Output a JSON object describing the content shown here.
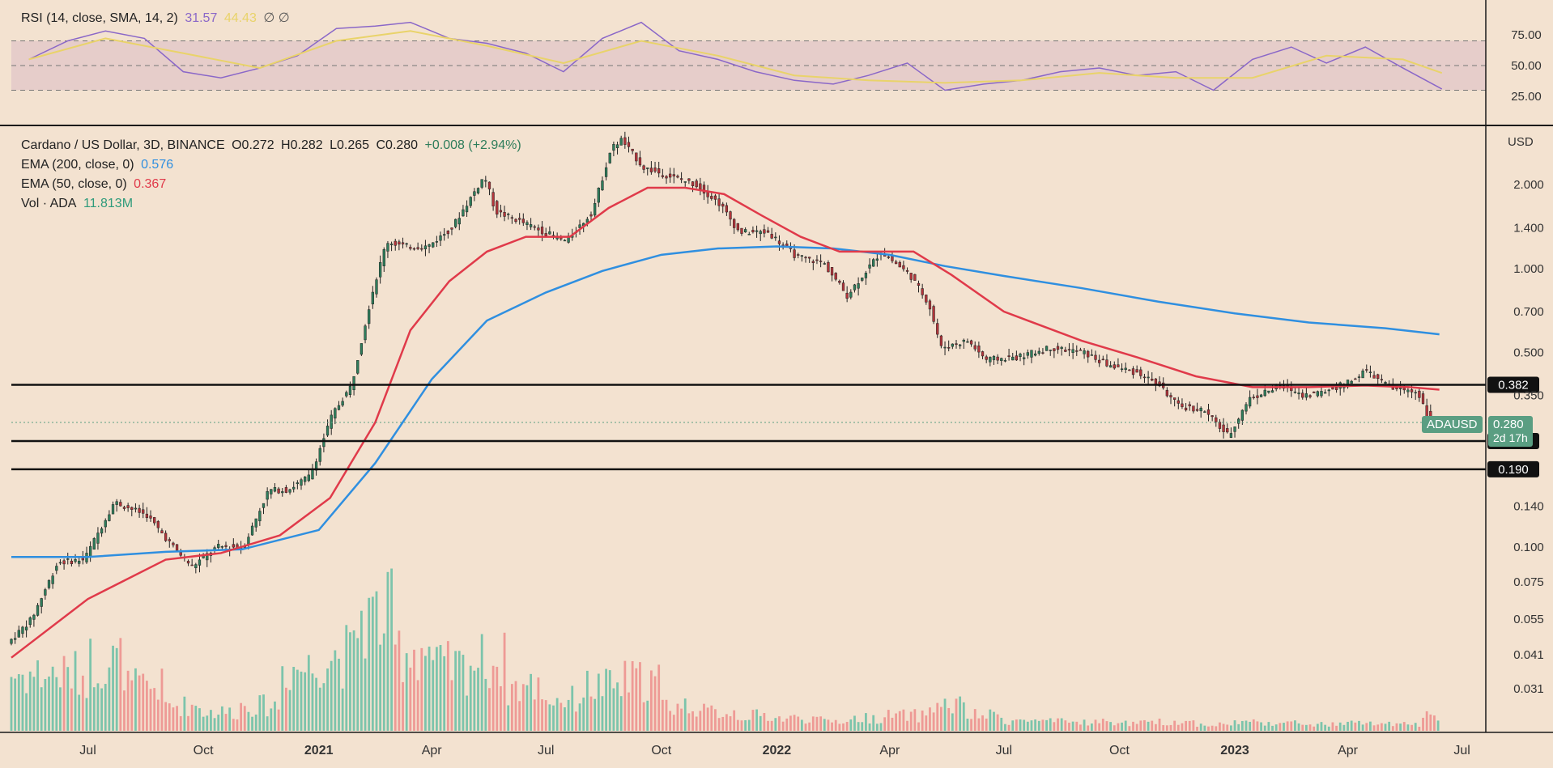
{
  "rsi_legend": {
    "name": "RSI (14, close, SMA, 14, 2)",
    "rsi_value": "31.57",
    "sma_value": "44.43",
    "extra": "∅ ∅"
  },
  "main_legend": {
    "symbol": "Cardano / US Dollar, 3D, BINANCE",
    "open": "O0.272",
    "high": "H0.282",
    "low": "L0.265",
    "close": "C0.280",
    "change": "+0.008 (+2.94%)",
    "ema200_label": "EMA (200, close, 0)",
    "ema200_value": "0.576",
    "ema50_label": "EMA (50, close, 0)",
    "ema50_value": "0.367",
    "vol_label": "Vol · ADA",
    "vol_value": "11.813M"
  },
  "price_tag": {
    "symbol": "ADAUSD",
    "price": "0.280",
    "countdown": "2d 17h"
  },
  "currency": "USD",
  "colors": {
    "background": "#f3e2d0",
    "up": "#2e7d5b",
    "down": "#b2343a",
    "ema200": "#2f8fe0",
    "ema50": "#e03a4a",
    "rsi": "#8a67c8",
    "rsi_sma": "#e9d36a",
    "vol_up": "#7cc4ab",
    "vol_down": "#ee9a95",
    "rsi_band": "#e2c8c8"
  },
  "chart_data": [
    {
      "type": "line",
      "name": "RSI",
      "yaxis_ticks": [
        "75.00",
        "50.00",
        "25.00"
      ],
      "ylim": [
        10,
        90
      ],
      "band": [
        30,
        70
      ],
      "levels": [
        70,
        50,
        30
      ],
      "series": [
        {
          "name": "RSI",
          "x": [
            "2020-05",
            "2020-06",
            "2020-07",
            "2020-08",
            "2020-09",
            "2020-10",
            "2020-11",
            "2020-12",
            "2021-01",
            "2021-02",
            "2021-03",
            "2021-04",
            "2021-05",
            "2021-06",
            "2021-07",
            "2021-08",
            "2021-09",
            "2021-10",
            "2021-11",
            "2021-12",
            "2022-01",
            "2022-02",
            "2022-03",
            "2022-04",
            "2022-05",
            "2022-06",
            "2022-07",
            "2022-08",
            "2022-09",
            "2022-10",
            "2022-11",
            "2022-12",
            "2023-01",
            "2023-02",
            "2023-03",
            "2023-04",
            "2023-05",
            "2023-06"
          ],
          "values": [
            55,
            70,
            78,
            72,
            45,
            40,
            48,
            58,
            80,
            82,
            85,
            72,
            68,
            60,
            45,
            72,
            85,
            62,
            55,
            45,
            38,
            35,
            42,
            52,
            30,
            35,
            38,
            45,
            48,
            42,
            45,
            30,
            55,
            65,
            52,
            65,
            48,
            31
          ]
        },
        {
          "name": "SMA",
          "x": [
            "2020-05",
            "2020-07",
            "2020-09",
            "2020-11",
            "2021-01",
            "2021-03",
            "2021-05",
            "2021-07",
            "2021-09",
            "2021-11",
            "2022-01",
            "2022-03",
            "2022-05",
            "2022-07",
            "2022-09",
            "2022-11",
            "2023-01",
            "2023-03",
            "2023-05",
            "2023-06"
          ],
          "values": [
            55,
            72,
            60,
            48,
            70,
            78,
            66,
            52,
            70,
            58,
            42,
            38,
            36,
            38,
            44,
            40,
            40,
            58,
            55,
            44
          ]
        }
      ]
    },
    {
      "type": "candlestick",
      "name": "Cardano / US Dollar, 3D, BINANCE",
      "scale": "log",
      "ylabel": "USD",
      "yaxis_ticks": [
        2.0,
        1.4,
        1.0,
        0.7,
        0.5,
        0.35,
        0.14,
        0.1,
        0.075,
        0.055,
        0.041,
        0.031
      ],
      "ylim": [
        0.022,
        3.2
      ],
      "x_ticks": [
        "Jul",
        "Oct",
        "2021",
        "Apr",
        "Jul",
        "Oct",
        "2022",
        "Apr",
        "Jul",
        "Oct",
        "2023",
        "Apr",
        "Jul"
      ],
      "x_tick_dates": [
        "2020-07-01",
        "2020-10-01",
        "2021-01-01",
        "2021-04-01",
        "2021-07-01",
        "2021-10-01",
        "2022-01-01",
        "2022-04-01",
        "2022-07-01",
        "2022-10-01",
        "2023-01-01",
        "2023-04-01",
        "2023-07-01"
      ],
      "xlim": [
        "2020-05-01",
        "2023-07-20"
      ],
      "price_path": {
        "dates": [
          "2020-05-01",
          "2020-05-20",
          "2020-06-10",
          "2020-07-01",
          "2020-07-25",
          "2020-08-20",
          "2020-09-10",
          "2020-09-25",
          "2020-10-15",
          "2020-11-05",
          "2020-11-25",
          "2020-12-10",
          "2020-12-28",
          "2021-01-15",
          "2021-01-30",
          "2021-02-15",
          "2021-02-27",
          "2021-03-15",
          "2021-04-01",
          "2021-04-20",
          "2021-05-16",
          "2021-05-25",
          "2021-06-10",
          "2021-06-25",
          "2021-07-20",
          "2021-08-10",
          "2021-08-25",
          "2021-09-02",
          "2021-09-20",
          "2021-10-10",
          "2021-11-01",
          "2021-11-20",
          "2021-12-05",
          "2021-12-28",
          "2022-01-20",
          "2022-02-10",
          "2022-03-01",
          "2022-03-28",
          "2022-04-20",
          "2022-05-05",
          "2022-05-15",
          "2022-06-05",
          "2022-06-20",
          "2022-07-15",
          "2022-08-10",
          "2022-09-05",
          "2022-09-25",
          "2022-10-20",
          "2022-11-05",
          "2022-11-20",
          "2022-12-10",
          "2022-12-30",
          "2023-01-15",
          "2023-02-10",
          "2023-03-01",
          "2023-03-15",
          "2023-04-05",
          "2023-04-18",
          "2023-05-10",
          "2023-05-30",
          "2023-06-10",
          "2023-06-13"
        ],
        "close": [
          0.045,
          0.055,
          0.088,
          0.09,
          0.145,
          0.13,
          0.1,
          0.085,
          0.1,
          0.1,
          0.16,
          0.16,
          0.18,
          0.3,
          0.38,
          0.8,
          1.25,
          1.2,
          1.2,
          1.4,
          2.15,
          1.6,
          1.5,
          1.4,
          1.25,
          1.6,
          2.7,
          2.9,
          2.3,
          2.15,
          2.0,
          1.7,
          1.35,
          1.35,
          1.1,
          1.05,
          0.8,
          1.15,
          0.95,
          0.75,
          0.52,
          0.55,
          0.47,
          0.48,
          0.52,
          0.5,
          0.45,
          0.42,
          0.38,
          0.32,
          0.31,
          0.25,
          0.34,
          0.38,
          0.35,
          0.36,
          0.39,
          0.43,
          0.37,
          0.36,
          0.27,
          0.28
        ]
      },
      "last_price": 0.28,
      "series": [
        {
          "name": "EMA (200, close, 0)",
          "dates": [
            "2020-05-01",
            "2020-07-01",
            "2020-09-01",
            "2020-11-01",
            "2021-01-01",
            "2021-02-15",
            "2021-04-01",
            "2021-05-15",
            "2021-07-01",
            "2021-08-15",
            "2021-10-01",
            "2021-11-15",
            "2022-01-01",
            "2022-02-15",
            "2022-04-01",
            "2022-05-15",
            "2022-07-01",
            "2022-09-01",
            "2022-11-01",
            "2023-01-01",
            "2023-03-01",
            "2023-05-01",
            "2023-06-13"
          ],
          "values": [
            0.092,
            0.092,
            0.096,
            0.098,
            0.115,
            0.2,
            0.4,
            0.65,
            0.82,
            0.98,
            1.12,
            1.18,
            1.2,
            1.18,
            1.12,
            1.02,
            0.94,
            0.85,
            0.76,
            0.69,
            0.64,
            0.61,
            0.58
          ]
        },
        {
          "name": "EMA (50, close, 0)",
          "dates": [
            "2020-05-01",
            "2020-07-01",
            "2020-09-01",
            "2020-10-15",
            "2020-12-01",
            "2021-01-10",
            "2021-02-15",
            "2021-03-15",
            "2021-04-15",
            "2021-05-15",
            "2021-06-15",
            "2021-07-20",
            "2021-08-20",
            "2021-09-20",
            "2021-10-20",
            "2021-11-20",
            "2021-12-20",
            "2022-01-20",
            "2022-02-20",
            "2022-03-20",
            "2022-04-20",
            "2022-05-20",
            "2022-07-01",
            "2022-09-01",
            "2022-10-15",
            "2022-12-01",
            "2023-01-15",
            "2023-03-01",
            "2023-04-15",
            "2023-05-20",
            "2023-06-13"
          ],
          "values": [
            0.04,
            0.065,
            0.09,
            0.095,
            0.11,
            0.15,
            0.28,
            0.6,
            0.9,
            1.15,
            1.3,
            1.3,
            1.65,
            1.95,
            1.95,
            1.85,
            1.55,
            1.3,
            1.15,
            1.15,
            1.15,
            0.95,
            0.7,
            0.55,
            0.48,
            0.41,
            0.375,
            0.375,
            0.38,
            0.375,
            0.367
          ]
        },
        {
          "name": "EMA 50 extra",
          "dates": [],
          "values": []
        }
      ],
      "horizontal_levels": [
        {
          "value": 0.382,
          "label": "0.382"
        },
        {
          "value": 0.24,
          "label": "0.240"
        },
        {
          "value": 0.19,
          "label": "0.190"
        }
      ]
    },
    {
      "type": "bar",
      "name": "Vol · ADA",
      "note": "volume histogram at bottom of price pane",
      "dates": [
        "2020-06",
        "2020-07",
        "2020-08",
        "2020-09",
        "2020-10",
        "2020-11",
        "2020-12",
        "2021-01",
        "2021-02",
        "2021-03",
        "2021-04",
        "2021-05",
        "2021-06",
        "2021-07",
        "2021-08",
        "2021-09",
        "2021-10",
        "2021-11",
        "2021-12",
        "2022-01",
        "2022-02",
        "2022-03",
        "2022-04",
        "2022-05",
        "2022-06",
        "2022-07",
        "2022-08",
        "2022-09",
        "2022-10",
        "2022-11",
        "2022-12",
        "2023-01",
        "2023-02",
        "2023-03",
        "2023-04",
        "2023-05",
        "2023-06"
      ],
      "relative_values": [
        0.45,
        0.55,
        0.35,
        0.2,
        0.15,
        0.2,
        0.5,
        0.6,
        0.9,
        0.65,
        0.5,
        0.55,
        0.35,
        0.25,
        0.35,
        0.4,
        0.2,
        0.15,
        0.12,
        0.1,
        0.08,
        0.1,
        0.12,
        0.2,
        0.12,
        0.08,
        0.07,
        0.07,
        0.06,
        0.07,
        0.05,
        0.07,
        0.06,
        0.05,
        0.06,
        0.05,
        0.12
      ]
    }
  ]
}
